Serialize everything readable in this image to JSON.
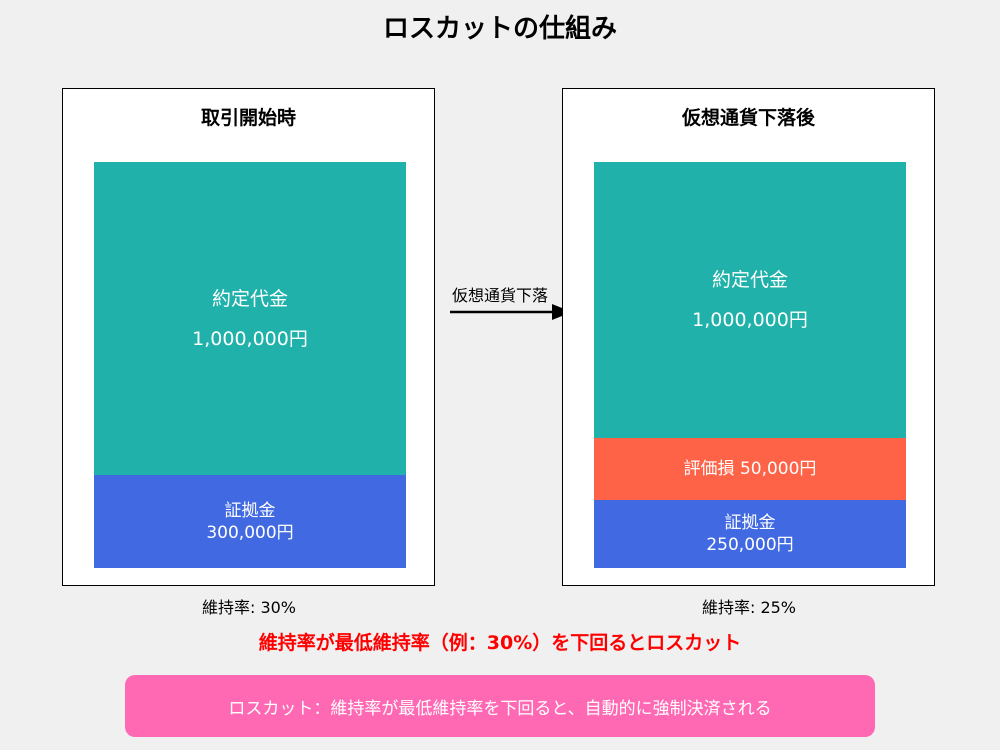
{
  "title": "ロスカットの仕組み",
  "left_panel": {
    "heading": "取引開始時",
    "contract": {
      "label": "約定代金",
      "value": "1,000,000円"
    },
    "margin": {
      "label": "証拠金",
      "value": "300,000円"
    },
    "ratio": "維持率: 30%"
  },
  "arrow": {
    "label": "仮想通貨下落"
  },
  "right_panel": {
    "heading": "仮想通貨下落後",
    "contract": {
      "label": "約定代金",
      "value": "1,000,000円"
    },
    "loss": {
      "text": "評価損 50,000円"
    },
    "margin": {
      "label": "証拠金",
      "value": "250,000円"
    },
    "ratio": "維持率: 25%"
  },
  "warning": "維持率が最低維持率（例：30%）を下回るとロスカット",
  "note": "ロスカット：維持率が最低維持率を下回ると、自動的に強制決済される",
  "colors": {
    "contract": "#20b2aa",
    "margin": "#4169e1",
    "loss": "#ff6347",
    "warning": "#ff0000",
    "note_bg": "#ff69b4"
  }
}
